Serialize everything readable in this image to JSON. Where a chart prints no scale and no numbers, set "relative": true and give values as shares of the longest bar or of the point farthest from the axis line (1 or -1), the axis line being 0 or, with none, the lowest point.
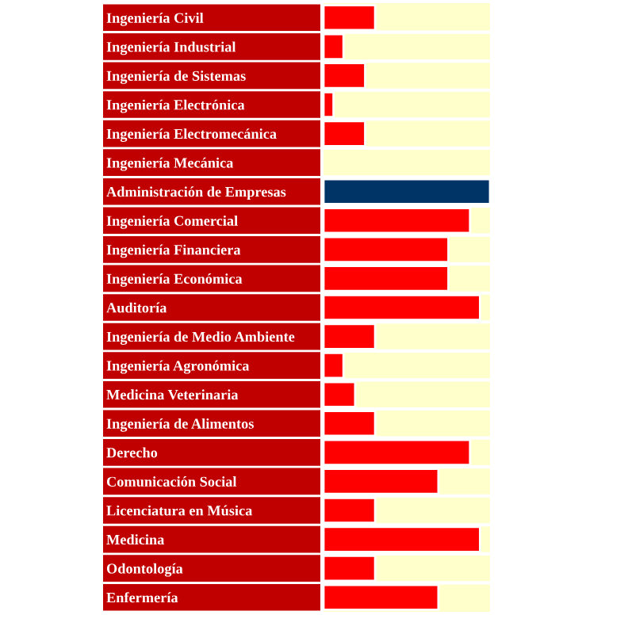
{
  "chart_data": {
    "type": "bar",
    "orientation": "horizontal",
    "relative": true,
    "categories": [
      "Ingeniería Civil",
      "Ingeniería Industrial",
      "Ingeniería de Sistemas",
      "Ingeniería Electrónica",
      "Ingeniería Electromecánica",
      "Ingeniería Mecánica",
      "Administración de Empresas",
      "Ingeniería Comercial",
      "Ingeniería Financiera",
      "Ingeniería Económica",
      "Auditoría",
      "Ingeniería de Medio Ambiente",
      "Ingeniería Agronómica",
      "Medicina Veterinaria",
      "Ingeniería de Alimentos",
      "Derecho",
      "Comunicación Social",
      "Licenciatura en Música",
      "Medicina",
      "Odontología",
      "Enfermería"
    ],
    "values": [
      0.31,
      0.12,
      0.25,
      0.06,
      0.25,
      null,
      1,
      0.88,
      0.75,
      0.75,
      0.94,
      0.31,
      0.12,
      0.19,
      0.31,
      0.88,
      0.69,
      0.31,
      0.94,
      0.31,
      0.69
    ],
    "colors": [
      "#ff0000",
      "#ff0000",
      "#ff0000",
      "#ff0000",
      "#ff0000",
      "#ff0000",
      "#003366",
      "#ff0000",
      "#ff0000",
      "#ff0000",
      "#ff0000",
      "#ff0000",
      "#ff0000",
      "#ff0000",
      "#ff0000",
      "#ff0000",
      "#ff0000",
      "#ff0000",
      "#ff0000",
      "#ff0000",
      "#ff0000"
    ],
    "legend": false,
    "grid": false
  }
}
